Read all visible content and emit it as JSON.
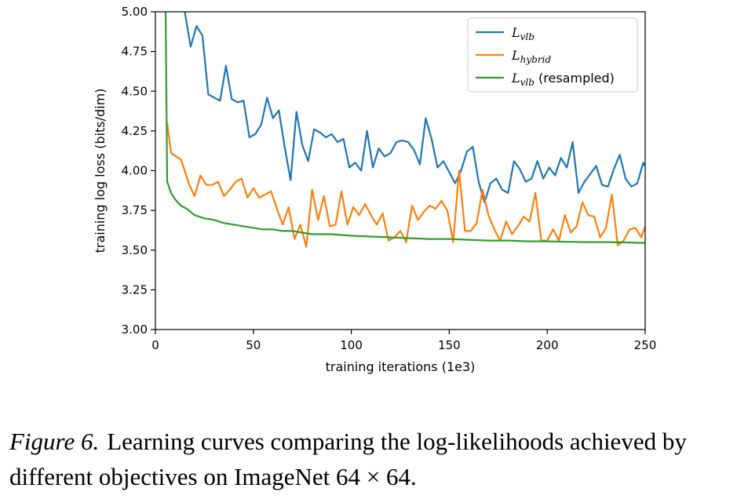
{
  "chart_data": {
    "type": "line",
    "xlabel": "training iterations (1e3)",
    "ylabel": "training log loss (bits/dim)",
    "xlim": [
      0,
      250
    ],
    "ylim": [
      3.0,
      5.0
    ],
    "xticks": [
      0,
      50,
      100,
      150,
      200,
      250
    ],
    "yticks": [
      3.0,
      3.25,
      3.5,
      3.75,
      4.0,
      4.25,
      4.5,
      4.75,
      5.0
    ],
    "grid": false,
    "legend_position": "top-right",
    "series": [
      {
        "name": "L_vlb",
        "legend_main": "L",
        "legend_sub": "vlb",
        "legend_suffix": "",
        "color": "#1f77b4",
        "x": [
          5,
          10,
          15,
          18,
          21,
          24,
          27,
          30,
          33,
          36,
          39,
          42,
          45,
          48,
          51,
          54,
          57,
          60,
          63,
          66,
          69,
          72,
          75,
          78,
          81,
          84,
          87,
          90,
          93,
          96,
          99,
          102,
          105,
          108,
          111,
          114,
          117,
          120,
          123,
          126,
          129,
          132,
          135,
          138,
          141,
          144,
          147,
          150,
          153,
          156,
          159,
          162,
          165,
          168,
          171,
          174,
          177,
          180,
          183,
          186,
          189,
          192,
          195,
          198,
          201,
          204,
          207,
          210,
          213,
          216,
          219,
          222,
          225,
          228,
          231,
          234,
          237,
          240,
          243,
          246,
          249,
          250
        ],
        "y": [
          5.3,
          5.1,
          5.0,
          4.78,
          4.91,
          4.85,
          4.48,
          4.46,
          4.44,
          4.66,
          4.45,
          4.43,
          4.44,
          4.21,
          4.23,
          4.29,
          4.46,
          4.33,
          4.38,
          4.15,
          3.94,
          4.37,
          4.16,
          4.06,
          4.26,
          4.24,
          4.21,
          4.23,
          4.18,
          4.2,
          4.02,
          4.05,
          4.0,
          4.25,
          4.02,
          4.14,
          4.09,
          4.11,
          4.18,
          4.19,
          4.18,
          4.13,
          4.04,
          4.33,
          4.2,
          4.02,
          4.06,
          3.99,
          3.92,
          4.0,
          4.12,
          4.15,
          3.93,
          3.8,
          3.92,
          3.95,
          3.88,
          3.86,
          4.06,
          4.01,
          3.93,
          3.95,
          4.06,
          3.95,
          4.02,
          3.97,
          4.08,
          4.02,
          4.18,
          3.86,
          3.93,
          3.98,
          4.03,
          3.91,
          3.9,
          4.01,
          4.1,
          3.95,
          3.9,
          3.92,
          4.05,
          4.03
        ]
      },
      {
        "name": "L_hybrid",
        "legend_main": "L",
        "legend_sub": "hybrid",
        "legend_suffix": "",
        "color": "#ff7f0e",
        "x": [
          6,
          8,
          13,
          15,
          17,
          20,
          23,
          26,
          29,
          32,
          35,
          38,
          41,
          44,
          47,
          50,
          53,
          56,
          59,
          62,
          65,
          68,
          71,
          74,
          77,
          80,
          83,
          86,
          89,
          92,
          95,
          98,
          101,
          104,
          107,
          110,
          113,
          116,
          119,
          122,
          125,
          128,
          131,
          134,
          137,
          140,
          143,
          146,
          149,
          152,
          155,
          158,
          161,
          164,
          167,
          170,
          173,
          176,
          179,
          182,
          185,
          188,
          191,
          194,
          197,
          200,
          203,
          206,
          209,
          212,
          215,
          218,
          221,
          224,
          227,
          230,
          233,
          236,
          239,
          242,
          245,
          248,
          250
        ],
        "y": [
          4.3,
          4.11,
          4.07,
          4.0,
          3.92,
          3.84,
          3.97,
          3.91,
          3.91,
          3.93,
          3.84,
          3.88,
          3.93,
          3.95,
          3.83,
          3.89,
          3.83,
          3.85,
          3.87,
          3.76,
          3.66,
          3.77,
          3.57,
          3.66,
          3.52,
          3.88,
          3.69,
          3.84,
          3.65,
          3.66,
          3.87,
          3.66,
          3.77,
          3.72,
          3.79,
          3.72,
          3.66,
          3.73,
          3.56,
          3.58,
          3.62,
          3.55,
          3.78,
          3.69,
          3.74,
          3.78,
          3.76,
          3.81,
          3.75,
          3.55,
          4.0,
          3.62,
          3.62,
          3.67,
          3.88,
          3.72,
          3.63,
          3.56,
          3.68,
          3.6,
          3.65,
          3.71,
          3.68,
          3.86,
          3.56,
          3.56,
          3.63,
          3.56,
          3.72,
          3.61,
          3.65,
          3.8,
          3.72,
          3.71,
          3.58,
          3.64,
          3.85,
          3.53,
          3.56,
          3.63,
          3.64,
          3.58,
          3.65
        ]
      },
      {
        "name": "L_vlb (resampled)",
        "legend_main": "L",
        "legend_sub": "vlb",
        "legend_suffix": " (resampled)",
        "color": "#2ca02c",
        "x": [
          5,
          6,
          8,
          10,
          13,
          16,
          20,
          25,
          30,
          35,
          40,
          45,
          50,
          55,
          60,
          65,
          70,
          75,
          80,
          90,
          100,
          110,
          120,
          130,
          140,
          150,
          160,
          170,
          180,
          190,
          200,
          210,
          220,
          230,
          240,
          250
        ],
        "y": [
          5.3,
          3.93,
          3.86,
          3.82,
          3.78,
          3.76,
          3.72,
          3.7,
          3.69,
          3.67,
          3.66,
          3.65,
          3.64,
          3.63,
          3.63,
          3.62,
          3.62,
          3.61,
          3.6,
          3.6,
          3.59,
          3.585,
          3.58,
          3.575,
          3.57,
          3.57,
          3.565,
          3.56,
          3.56,
          3.555,
          3.555,
          3.552,
          3.55,
          3.55,
          3.548,
          3.545
        ]
      }
    ]
  },
  "caption": {
    "label": "Figure 6.",
    "text": "Learning curves comparing the log-likelihoods achieved by different objectives on ImageNet 64 × 64."
  }
}
